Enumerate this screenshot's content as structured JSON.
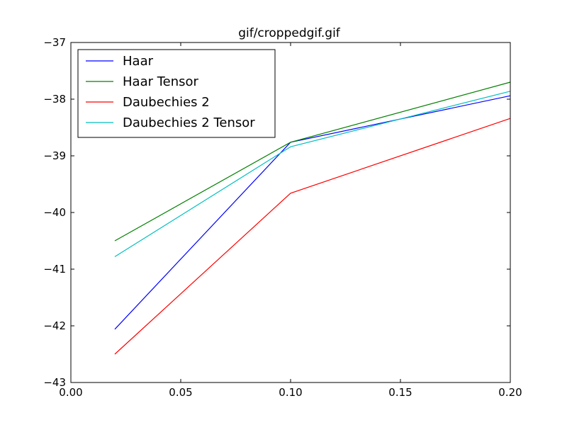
{
  "chart_data": {
    "type": "line",
    "title": "gif/croppedgif.gif",
    "xlabel": "",
    "ylabel": "",
    "x": [
      0.02,
      0.1,
      0.2
    ],
    "xlim": [
      0.0,
      0.2
    ],
    "ylim": [
      -43,
      -37
    ],
    "xticks": [
      0.0,
      0.05,
      0.1,
      0.15,
      0.2
    ],
    "xtick_labels": [
      "0.00",
      "0.05",
      "0.10",
      "0.15",
      "0.20"
    ],
    "yticks": [
      -43,
      -42,
      -41,
      -40,
      -39,
      -38,
      -37
    ],
    "ytick_labels": [
      "−43",
      "−42",
      "−41",
      "−40",
      "−39",
      "−38",
      "−37"
    ],
    "grid": false,
    "legend_position": "top-left",
    "series": [
      {
        "name": "Haar",
        "color": "#0000ff",
        "values": [
          -42.06,
          -38.76,
          -37.94
        ]
      },
      {
        "name": "Haar Tensor",
        "color": "#008000",
        "values": [
          -40.5,
          -38.76,
          -37.7
        ]
      },
      {
        "name": "Daubechies 2",
        "color": "#ff0000",
        "values": [
          -42.5,
          -39.66,
          -38.34
        ]
      },
      {
        "name": "Daubechies 2 Tensor",
        "color": "#00bfbf",
        "values": [
          -40.78,
          -38.84,
          -37.86
        ]
      }
    ]
  }
}
